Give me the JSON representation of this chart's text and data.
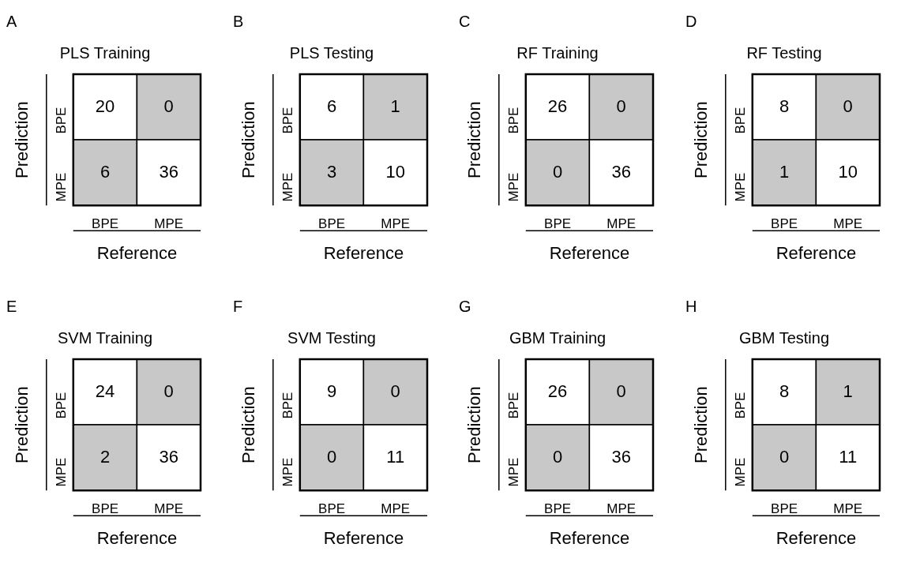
{
  "chart_data": [
    {
      "type": "heatmap",
      "title": "PLS Training",
      "annotations": [
        "A"
      ],
      "data_labels": true,
      "xlabel": "Reference",
      "ylabel": "Prediction",
      "categories": [
        "BPE",
        "MPE"
      ],
      "y_categories": [
        "BPE",
        "MPE"
      ],
      "cells": [
        [
          20,
          0
        ],
        [
          6,
          36
        ]
      ],
      "colors": [
        [
          "#ffffff",
          "#c8c8c8"
        ],
        [
          "#c8c8c8",
          "#ffffff"
        ]
      ]
    },
    {
      "type": "heatmap",
      "title": "PLS Testing",
      "annotations": [
        "B"
      ],
      "data_labels": true,
      "xlabel": "Reference",
      "ylabel": "Prediction",
      "categories": [
        "BPE",
        "MPE"
      ],
      "y_categories": [
        "BPE",
        "MPE"
      ],
      "cells": [
        [
          6,
          1
        ],
        [
          3,
          10
        ]
      ],
      "colors": [
        [
          "#ffffff",
          "#c8c8c8"
        ],
        [
          "#c8c8c8",
          "#ffffff"
        ]
      ]
    },
    {
      "type": "heatmap",
      "title": "RF Training",
      "annotations": [
        "C"
      ],
      "data_labels": true,
      "xlabel": "Reference",
      "ylabel": "Prediction",
      "categories": [
        "BPE",
        "MPE"
      ],
      "y_categories": [
        "BPE",
        "MPE"
      ],
      "cells": [
        [
          26,
          0
        ],
        [
          0,
          36
        ]
      ],
      "colors": [
        [
          "#ffffff",
          "#c8c8c8"
        ],
        [
          "#c8c8c8",
          "#ffffff"
        ]
      ]
    },
    {
      "type": "heatmap",
      "title": "RF Testing",
      "annotations": [
        "D"
      ],
      "data_labels": true,
      "xlabel": "Reference",
      "ylabel": "Prediction",
      "categories": [
        "BPE",
        "MPE"
      ],
      "y_categories": [
        "BPE",
        "MPE"
      ],
      "cells": [
        [
          8,
          0
        ],
        [
          1,
          10
        ]
      ],
      "colors": [
        [
          "#ffffff",
          "#c8c8c8"
        ],
        [
          "#c8c8c8",
          "#ffffff"
        ]
      ]
    },
    {
      "type": "heatmap",
      "title": "SVM Training",
      "annotations": [
        "E"
      ],
      "data_labels": true,
      "xlabel": "Reference",
      "ylabel": "Prediction",
      "categories": [
        "BPE",
        "MPE"
      ],
      "y_categories": [
        "BPE",
        "MPE"
      ],
      "cells": [
        [
          24,
          0
        ],
        [
          2,
          36
        ]
      ],
      "colors": [
        [
          "#ffffff",
          "#c8c8c8"
        ],
        [
          "#c8c8c8",
          "#ffffff"
        ]
      ]
    },
    {
      "type": "heatmap",
      "title": "SVM Testing",
      "annotations": [
        "F"
      ],
      "data_labels": true,
      "xlabel": "Reference",
      "ylabel": "Prediction",
      "categories": [
        "BPE",
        "MPE"
      ],
      "y_categories": [
        "BPE",
        "MPE"
      ],
      "cells": [
        [
          9,
          0
        ],
        [
          0,
          11
        ]
      ],
      "colors": [
        [
          "#ffffff",
          "#c8c8c8"
        ],
        [
          "#c8c8c8",
          "#ffffff"
        ]
      ]
    },
    {
      "type": "heatmap",
      "title": "GBM Training",
      "annotations": [
        "G"
      ],
      "data_labels": true,
      "xlabel": "Reference",
      "ylabel": "Prediction",
      "categories": [
        "BPE",
        "MPE"
      ],
      "y_categories": [
        "BPE",
        "MPE"
      ],
      "cells": [
        [
          26,
          0
        ],
        [
          0,
          36
        ]
      ],
      "colors": [
        [
          "#ffffff",
          "#c8c8c8"
        ],
        [
          "#c8c8c8",
          "#ffffff"
        ]
      ]
    },
    {
      "type": "heatmap",
      "title": "GBM Testing",
      "annotations": [
        "H"
      ],
      "data_labels": true,
      "xlabel": "Reference",
      "ylabel": "Prediction",
      "categories": [
        "BPE",
        "MPE"
      ],
      "y_categories": [
        "BPE",
        "MPE"
      ],
      "cells": [
        [
          8,
          1
        ],
        [
          0,
          11
        ]
      ],
      "colors": [
        [
          "#ffffff",
          "#c8c8c8"
        ],
        [
          "#c8c8c8",
          "#ffffff"
        ]
      ]
    }
  ]
}
